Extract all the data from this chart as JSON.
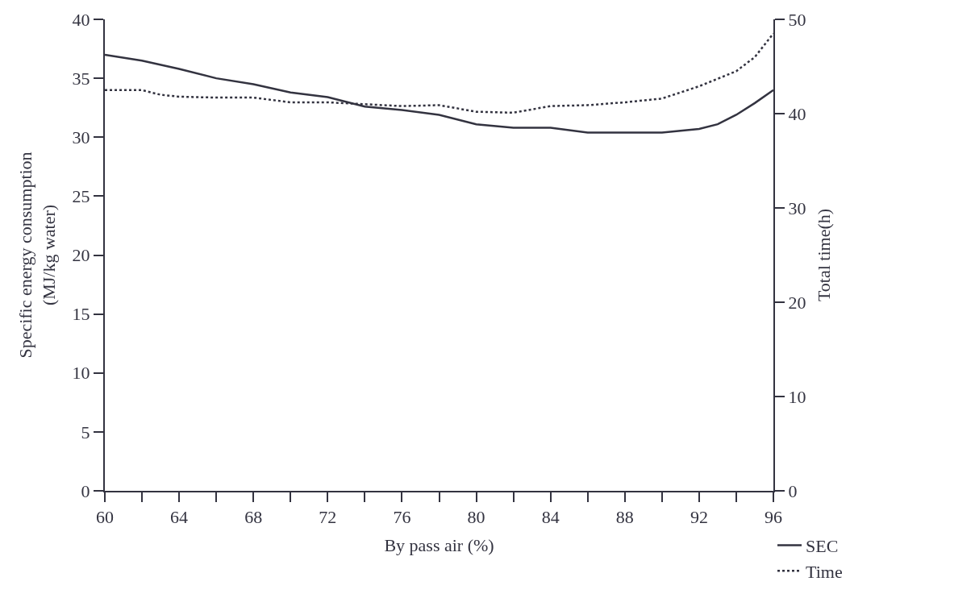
{
  "chart_data": {
    "type": "line",
    "xlabel": "By pass air (%)",
    "ylabel": "Specific energy consumption\n(MJ/kg water)",
    "y2label": "Total time(h)",
    "xlim": [
      60,
      96
    ],
    "xticks": [
      60,
      {
        "value": 62,
        "label": null
      },
      64,
      {
        "value": 66,
        "label": null
      },
      68,
      {
        "value": 70,
        "label": null
      },
      72,
      {
        "value": 74,
        "label": null
      },
      76,
      {
        "value": 78,
        "label": null
      },
      80,
      {
        "value": 82,
        "label": null
      },
      84,
      {
        "value": 86,
        "label": null
      },
      88,
      {
        "value": 90,
        "label": null
      },
      92,
      {
        "value": 94,
        "label": null
      },
      96
    ],
    "ylim": [
      0,
      40
    ],
    "yticks": [
      0,
      5,
      10,
      15,
      20,
      25,
      30,
      35,
      40
    ],
    "y2lim": [
      0,
      50
    ],
    "y2ticks": [
      0,
      10,
      20,
      30,
      40,
      50
    ],
    "legend": "bottom right",
    "marker": "none",
    "series": [
      {
        "name": "SEC",
        "color": "#333340",
        "line_style": "solid",
        "x": [
          60,
          62,
          64,
          66,
          68,
          70,
          72,
          74,
          76,
          78,
          80,
          82,
          84,
          86,
          88,
          90,
          92,
          93,
          94,
          95,
          96
        ],
        "values": [
          37,
          36.5,
          35.8,
          35,
          34.5,
          33.8,
          33.4,
          32.6,
          32.3,
          31.9,
          31.1,
          30.8,
          30.8,
          30.4,
          30.4,
          30.4,
          30.7,
          31.1,
          31.9,
          32.9,
          34
        ]
      },
      {
        "name": "Time",
        "color": "#333340",
        "line_style": "dotted",
        "axis": "y2",
        "x": [
          60,
          62,
          63,
          64,
          66,
          68,
          70,
          72,
          74,
          76,
          78,
          80,
          82,
          84,
          86,
          88,
          90,
          92,
          94,
          95,
          96
        ],
        "values": [
          42.5,
          42.5,
          42,
          41.8,
          41.7,
          41.7,
          41.2,
          41.2,
          41,
          40.8,
          40.9,
          40.2,
          40.1,
          40.8,
          40.9,
          41.2,
          41.6,
          42.9,
          44.5,
          46,
          48.5
        ]
      }
    ]
  }
}
